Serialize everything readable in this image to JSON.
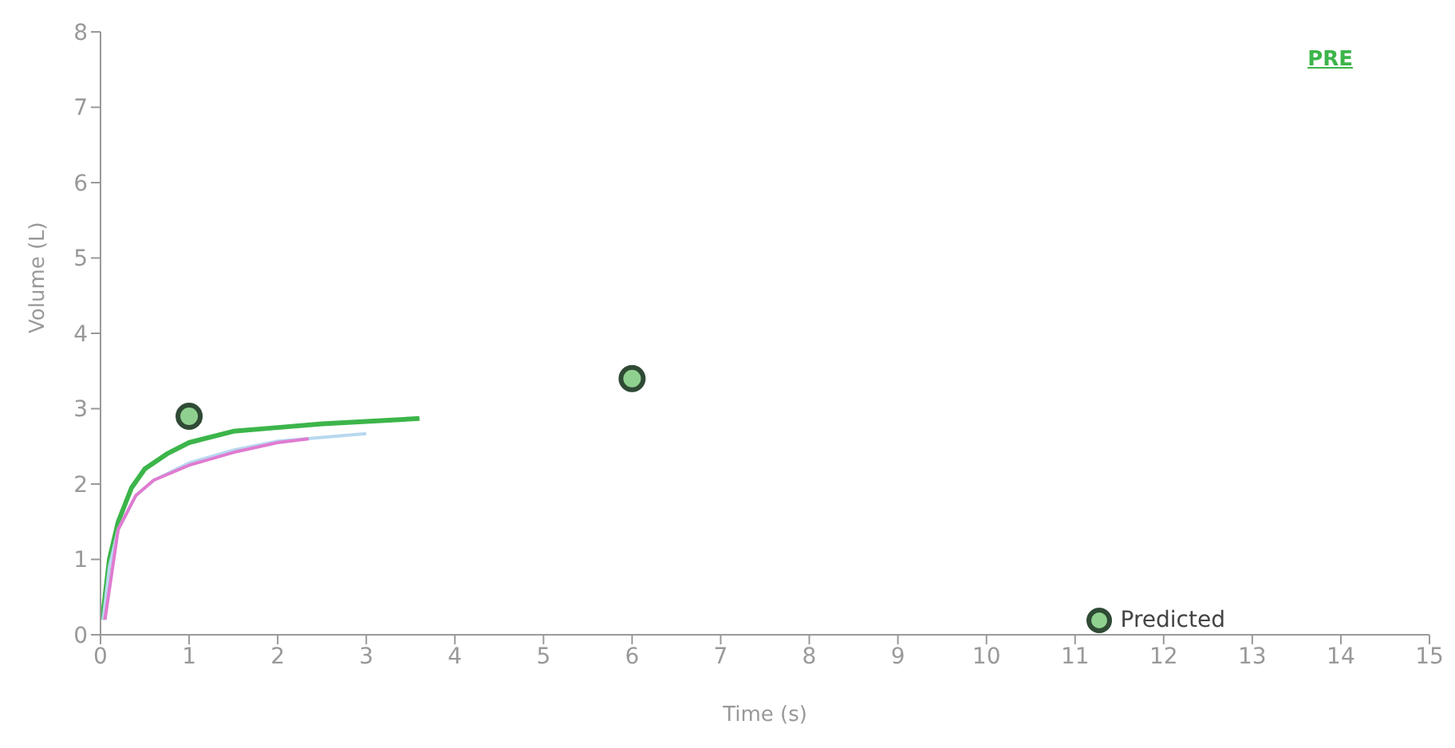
{
  "chart_data": {
    "type": "line",
    "xlabel": "Time (s)",
    "ylabel": "Volume (L)",
    "xlim": [
      0,
      15
    ],
    "xticks": [
      0,
      1,
      2,
      3,
      4,
      5,
      6,
      7,
      8,
      9,
      10,
      11,
      12,
      13,
      14,
      15
    ],
    "ylim": [
      0,
      8
    ],
    "yticks": [
      0,
      1,
      2,
      3,
      4,
      5,
      6,
      7,
      8
    ],
    "grid": false,
    "legend": "bottom right",
    "marker": "none",
    "line_style": "solid",
    "series": [
      {
        "name": "PRE",
        "color": "#3cb54a",
        "x": [
          0.02,
          0.1,
          0.2,
          0.35,
          0.5,
          0.75,
          1,
          1.5,
          2,
          2.5,
          3,
          3.6
        ],
        "values": [
          0.2,
          1.0,
          1.5,
          1.95,
          2.2,
          2.4,
          2.55,
          2.7,
          2.75,
          2.8,
          2.83,
          2.87
        ]
      },
      {
        "color": "#b8d8f0",
        "x": [
          0.03,
          0.1,
          0.2,
          0.4,
          0.6,
          1,
          1.5,
          2,
          2.5,
          3
        ],
        "values": [
          0.2,
          0.9,
          1.4,
          1.85,
          2.05,
          2.28,
          2.45,
          2.57,
          2.62,
          2.67
        ]
      },
      {
        "color": "#e07bd0",
        "x": [
          0.05,
          0.2,
          0.4,
          0.6,
          1,
          1.5,
          2,
          2.35
        ],
        "values": [
          0.2,
          1.4,
          1.85,
          2.05,
          2.25,
          2.42,
          2.55,
          2.6
        ]
      },
      {
        "name": "Predicted",
        "type": "scatter",
        "marker": "circle",
        "color": "#8fd08f",
        "x": [
          1,
          6
        ],
        "values": [
          2.9,
          3.4
        ]
      }
    ]
  }
}
